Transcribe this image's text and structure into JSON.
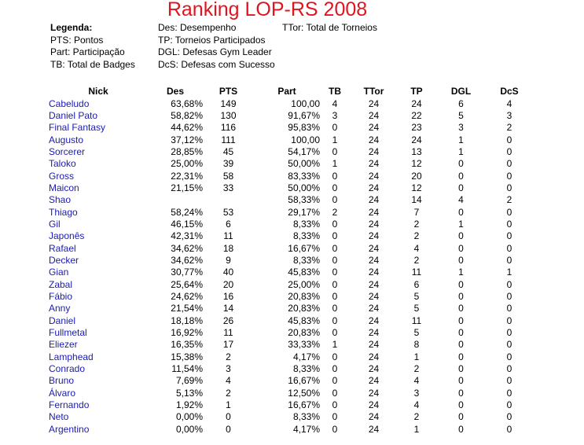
{
  "title": "Ranking LOP-RS 2008",
  "legend": {
    "heading": "Legenda:",
    "left": [
      "PTS: Pontos",
      "Part: Participação",
      "TB: Total de Badges"
    ],
    "middle": [
      "Des: Desempenho",
      "TP: Torneios Participados",
      "DGL: Defesas Gym Leader",
      "DcS: Defesas com Sucesso"
    ],
    "right": [
      "TTor: Total de Torneios"
    ]
  },
  "columns": [
    "Nick",
    "Des",
    "PTS",
    "Part",
    "TB",
    "TTor",
    "TP",
    "DGL",
    "DcS"
  ],
  "rows": [
    [
      "Cabeludo",
      "63,68%",
      "149",
      "100,00",
      "4",
      "24",
      "24",
      "6",
      "4"
    ],
    [
      "Daniel Pato",
      "58,82%",
      "130",
      "91,67%",
      "3",
      "24",
      "22",
      "5",
      "3"
    ],
    [
      "Final Fantasy",
      "44,62%",
      "116",
      "95,83%",
      "0",
      "24",
      "23",
      "3",
      "2"
    ],
    [
      "Augusto",
      "37,12%",
      "111",
      "100,00",
      "1",
      "24",
      "24",
      "1",
      "0"
    ],
    [
      "Sorcerer",
      "28,85%",
      "45",
      "54,17%",
      "0",
      "24",
      "13",
      "1",
      "0"
    ],
    [
      "Taloko",
      "25,00%",
      "39",
      "50,00%",
      "1",
      "24",
      "12",
      "0",
      "0"
    ],
    [
      "Gross",
      "22,31%",
      "58",
      "83,33%",
      "0",
      "24",
      "20",
      "0",
      "0"
    ],
    [
      "Maicon",
      "21,15%",
      "33",
      "50,00%",
      "0",
      "24",
      "12",
      "0",
      "0"
    ],
    [
      "Shao",
      "",
      "",
      "58,33%",
      "0",
      "24",
      "14",
      "4",
      "2"
    ],
    [
      "Thiago",
      "58,24%",
      "53",
      "29,17%",
      "2",
      "24",
      "7",
      "0",
      "0"
    ],
    [
      "Gil",
      "46,15%",
      "6",
      "8,33%",
      "0",
      "24",
      "2",
      "1",
      "0"
    ],
    [
      "Japonês",
      "42,31%",
      "11",
      "8,33%",
      "0",
      "24",
      "2",
      "0",
      "0"
    ],
    [
      "Rafael",
      "34,62%",
      "18",
      "16,67%",
      "0",
      "24",
      "4",
      "0",
      "0"
    ],
    [
      "Decker",
      "34,62%",
      "9",
      "8,33%",
      "0",
      "24",
      "2",
      "0",
      "0"
    ],
    [
      "Gian",
      "30,77%",
      "40",
      "45,83%",
      "0",
      "24",
      "11",
      "1",
      "1"
    ],
    [
      "Zabal",
      "25,64%",
      "20",
      "25,00%",
      "0",
      "24",
      "6",
      "0",
      "0"
    ],
    [
      "Fábio",
      "24,62%",
      "16",
      "20,83%",
      "0",
      "24",
      "5",
      "0",
      "0"
    ],
    [
      "Anny",
      "21,54%",
      "14",
      "20,83%",
      "0",
      "24",
      "5",
      "0",
      "0"
    ],
    [
      "Daniel",
      "18,18%",
      "26",
      "45,83%",
      "0",
      "24",
      "11",
      "0",
      "0"
    ],
    [
      "Fullmetal",
      "16,92%",
      "11",
      "20,83%",
      "0",
      "24",
      "5",
      "0",
      "0"
    ],
    [
      "Eliezer",
      "16,35%",
      "17",
      "33,33%",
      "1",
      "24",
      "8",
      "0",
      "0"
    ],
    [
      "Lamphead",
      "15,38%",
      "2",
      "4,17%",
      "0",
      "24",
      "1",
      "0",
      "0"
    ],
    [
      "Conrado",
      "11,54%",
      "3",
      "8,33%",
      "0",
      "24",
      "2",
      "0",
      "0"
    ],
    [
      "Bruno",
      "7,69%",
      "4",
      "16,67%",
      "0",
      "24",
      "4",
      "0",
      "0"
    ],
    [
      "Álvaro",
      "5,13%",
      "2",
      "12,50%",
      "0",
      "24",
      "3",
      "0",
      "0"
    ],
    [
      "Fernando",
      "1,92%",
      "1",
      "16,67%",
      "0",
      "24",
      "4",
      "0",
      "0"
    ],
    [
      "Neto",
      "0,00%",
      "0",
      "8,33%",
      "0",
      "24",
      "2",
      "0",
      "0"
    ],
    [
      "Argentino",
      "0,00%",
      "0",
      "4,17%",
      "0",
      "24",
      "1",
      "0",
      "0"
    ]
  ]
}
